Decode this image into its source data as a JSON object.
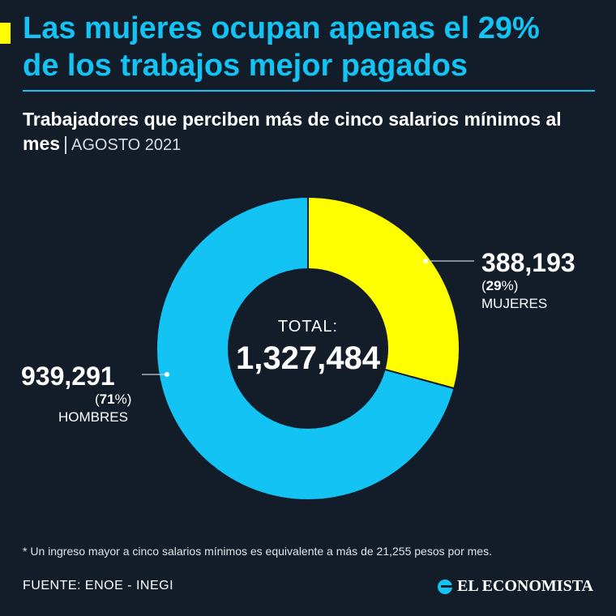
{
  "header": {
    "title_line1": "Las mujeres ocupan apenas el 29%",
    "title_line2": "de los trabajos mejor pagados",
    "subtitle": "Trabajadores que perciben más de cinco salarios mínimos al mes",
    "separator": "|",
    "date": "AGOSTO 2021"
  },
  "center": {
    "label": "TOTAL:",
    "value": "1,327,484"
  },
  "labels": {
    "women": {
      "value": "388,193",
      "pct_open": "(",
      "pct": "29",
      "pct_close": "%)",
      "name": "MUJERES"
    },
    "men": {
      "value": "939,291",
      "pct_open": "(",
      "pct": "71",
      "pct_close": "%)",
      "name": "HOMBRES"
    }
  },
  "footer": {
    "note": "* Un ingreso mayor a cinco salarios mínimos es equivalente a más de 21,255 pesos por mes.",
    "source": "FUENTE: ENOE - INEGI",
    "brand": "EL ECONOMISTA"
  },
  "colors": {
    "background": "#131d2a",
    "accent": "#12c3f4",
    "highlight": "#ffff00",
    "text": "#ffffff"
  },
  "icons": {
    "brand_logo": "el-economista-logo-icon",
    "accent_marker": "yellow-bar"
  },
  "chart_data": {
    "type": "pie",
    "variant": "donut",
    "total": 1327484,
    "categories": [
      "MUJERES",
      "HOMBRES"
    ],
    "values": [
      388193,
      939291
    ],
    "percentages": [
      29,
      71
    ],
    "colors": [
      "#ffff00",
      "#12c3f4"
    ]
  }
}
